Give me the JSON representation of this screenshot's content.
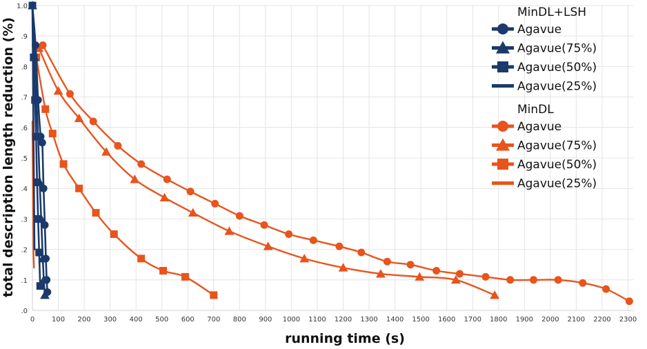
{
  "chart_data": {
    "type": "line",
    "title": "",
    "xlabel": "running time (s)",
    "ylabel": "total description length reduction (%)",
    "xlim": [
      0,
      2320
    ],
    "ylim": [
      0,
      1.0
    ],
    "x_ticks": [
      0,
      100,
      200,
      300,
      400,
      500,
      600,
      700,
      800,
      900,
      1000,
      1100,
      1200,
      1300,
      1400,
      1500,
      1600,
      1700,
      1800,
      1900,
      2000,
      2100,
      2200,
      2300
    ],
    "y_ticks": [
      {
        "value": 0.0,
        "label": ".0"
      },
      {
        "value": 0.1,
        "label": ".1"
      },
      {
        "value": 0.2,
        "label": ".2"
      },
      {
        "value": 0.3,
        "label": ".3"
      },
      {
        "value": 0.4,
        "label": ".4"
      },
      {
        "value": 0.5,
        "label": ".5"
      },
      {
        "value": 0.6,
        "label": ".6"
      },
      {
        "value": 0.7,
        "label": ".7"
      },
      {
        "value": 0.8,
        "label": ".8"
      },
      {
        "value": 0.9,
        "label": ".9"
      },
      {
        "value": 1.0,
        "label": "1.0"
      }
    ],
    "grid": true,
    "legend_position": "top-right",
    "legend_groups": [
      {
        "title": "MinDL+LSH",
        "color": "#1b3a6b"
      },
      {
        "title": "MinDL",
        "color": "#e8541c"
      }
    ],
    "series": [
      {
        "group": "MinDL+LSH",
        "name": "Agavue",
        "color": "#1b3a6b",
        "marker": "circle",
        "x": [
          0,
          12,
          22,
          32,
          38,
          43,
          48,
          52,
          55,
          58
        ],
        "y": [
          1.0,
          0.87,
          0.69,
          0.57,
          0.55,
          0.4,
          0.28,
          0.17,
          0.1,
          0.06
        ]
      },
      {
        "group": "MinDL+LSH",
        "name": "Agavue(75%)",
        "color": "#1b3a6b",
        "marker": "triangle",
        "x": [
          0,
          8,
          15,
          22,
          28,
          34,
          40,
          44,
          48
        ],
        "y": [
          1.0,
          0.83,
          0.7,
          0.57,
          0.42,
          0.3,
          0.17,
          0.1,
          0.05
        ]
      },
      {
        "group": "MinDL+LSH",
        "name": "Agavue(50%)",
        "color": "#1b3a6b",
        "marker": "square",
        "x": [
          0,
          5,
          10,
          14,
          18,
          22,
          26,
          30
        ],
        "y": [
          1.0,
          0.83,
          0.69,
          0.57,
          0.42,
          0.3,
          0.19,
          0.08
        ]
      },
      {
        "group": "MinDL+LSH",
        "name": "Agavue(25%)",
        "color": "#1b3a6b",
        "marker": "none",
        "x": [
          0,
          2,
          4,
          6,
          8
        ],
        "y": [
          1.0,
          0.8,
          0.6,
          0.4,
          0.2
        ]
      },
      {
        "group": "MinDL",
        "name": "Agavue",
        "color": "#e8541c",
        "marker": "circle",
        "x": [
          40,
          145,
          235,
          330,
          420,
          520,
          610,
          705,
          800,
          895,
          990,
          1085,
          1185,
          1270,
          1370,
          1460,
          1560,
          1650,
          1750,
          1845,
          1935,
          2030,
          2125,
          2215,
          2305
        ],
        "y": [
          0.87,
          0.71,
          0.62,
          0.54,
          0.48,
          0.43,
          0.39,
          0.35,
          0.31,
          0.28,
          0.25,
          0.23,
          0.21,
          0.19,
          0.16,
          0.15,
          0.13,
          0.12,
          0.11,
          0.1,
          0.1,
          0.1,
          0.09,
          0.07,
          0.03
        ]
      },
      {
        "group": "MinDL",
        "name": "Agavue(75%)",
        "color": "#e8541c",
        "marker": "triangle",
        "x": [
          25,
          100,
          180,
          285,
          395,
          510,
          620,
          760,
          910,
          1050,
          1200,
          1345,
          1495,
          1635,
          1785
        ],
        "y": [
          0.86,
          0.72,
          0.63,
          0.52,
          0.43,
          0.37,
          0.32,
          0.26,
          0.21,
          0.17,
          0.14,
          0.12,
          0.11,
          0.1,
          0.05
        ]
      },
      {
        "group": "MinDL",
        "name": "Agavue(50%)",
        "color": "#e8541c",
        "marker": "square",
        "x": [
          15,
          50,
          78,
          120,
          180,
          245,
          315,
          420,
          505,
          590,
          700
        ],
        "y": [
          0.83,
          0.66,
          0.58,
          0.48,
          0.4,
          0.32,
          0.25,
          0.17,
          0.13,
          0.11,
          0.05
        ]
      },
      {
        "group": "MinDL",
        "name": "Agavue(25%)",
        "color": "#e8541c",
        "marker": "none",
        "x": [
          0,
          1,
          2,
          3,
          4,
          6
        ],
        "y": [
          0.62,
          0.5,
          0.4,
          0.3,
          0.2,
          0.14
        ]
      }
    ]
  }
}
